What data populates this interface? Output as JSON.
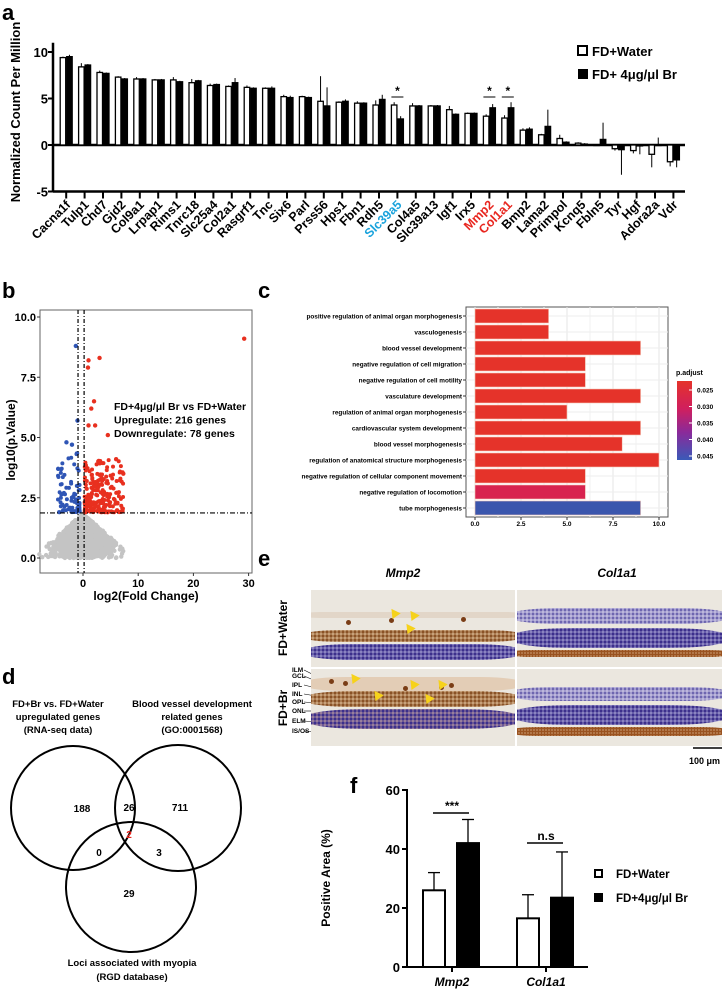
{
  "panel_labels": {
    "a": "a",
    "b": "b",
    "c": "c",
    "d": "d",
    "e": "e",
    "f": "f"
  },
  "chart_data": [
    {
      "id": "a",
      "type": "bar",
      "title": "",
      "xlabel": "",
      "ylabel": "Normalized Count Per Million",
      "ylim": [
        -5,
        10
      ],
      "yticks": [
        "-5",
        "0",
        "5",
        "10"
      ],
      "ytick_values": [
        -5,
        0,
        5,
        10
      ],
      "legend_position": "top-right",
      "categories": [
        "Cacna1f",
        "Tulp1",
        "Chd7",
        "Gjd2",
        "Col9a1",
        "Lrpap1",
        "Rims1",
        "Tnrc18",
        "Slc25a4",
        "Col2a1",
        "Rasgrf1",
        "Tnc",
        "Six6",
        "Parl",
        "Prss56",
        "Hps1",
        "Fbn1",
        "Rdh5",
        "Slc39a5",
        "Col4a5",
        "Slc39a13",
        "Igf1",
        "Irx5",
        "Mmp2",
        "Col1a1",
        "Bmp2",
        "Lama2",
        "Primpol",
        "Kcnq5",
        "Fbln5",
        "Tyr",
        "Hgf",
        "Adora2a",
        "Vdr"
      ],
      "category_colors": {
        "Slc39a5": "#1ba3dc",
        "Mmp2": "#e8261f",
        "Col1a1": "#e8261f"
      },
      "series": [
        {
          "name": "FD+Water",
          "fill": "#ffffff",
          "values": [
            9.4,
            8.4,
            7.8,
            7.3,
            7.1,
            7.0,
            7.0,
            6.7,
            6.4,
            6.3,
            6.2,
            6.1,
            5.2,
            5.2,
            4.7,
            4.6,
            4.5,
            4.3,
            4.3,
            4.2,
            4.2,
            3.8,
            3.4,
            3.1,
            2.9,
            1.6,
            1.1,
            0.7,
            0.2,
            0.0,
            -0.4,
            -0.6,
            -1.0,
            -1.8
          ],
          "errors": [
            0.1,
            0.4,
            0.2,
            0.1,
            0.2,
            0.1,
            0.3,
            0.4,
            0.2,
            0.1,
            0.2,
            0.1,
            0.2,
            0.1,
            2.7,
            0.1,
            0.2,
            0.5,
            0.3,
            0.3,
            0.1,
            0.4,
            0.1,
            0.2,
            0.3,
            0.2,
            0.1,
            0.4,
            0.1,
            0.0,
            0.2,
            0.3,
            1.4,
            0.5
          ]
        },
        {
          "name": "FD+ 4μg/μl Br",
          "fill": "#000000",
          "values": [
            9.5,
            8.6,
            7.7,
            7.1,
            7.1,
            7.0,
            6.8,
            6.9,
            6.5,
            6.7,
            6.1,
            6.1,
            5.1,
            5.1,
            4.2,
            4.7,
            4.5,
            4.9,
            2.8,
            4.2,
            4.2,
            3.3,
            3.4,
            4.0,
            4.0,
            1.7,
            2.0,
            0.3,
            0.1,
            0.6,
            -0.5,
            -0.1,
            0.0,
            -1.6
          ],
          "errors": [
            0.2,
            0.1,
            0.1,
            0.1,
            0.1,
            0.1,
            0.1,
            0.1,
            0.1,
            0.5,
            0.1,
            0.2,
            0.2,
            0.1,
            2.0,
            0.2,
            0.1,
            0.5,
            0.3,
            0.1,
            0.1,
            0.1,
            0.1,
            0.4,
            0.6,
            0.2,
            1.8,
            0.1,
            0.1,
            1.8,
            2.7,
            0.9,
            0.8,
            0.8
          ]
        }
      ],
      "significance": [
        {
          "category": "Slc39a5",
          "label": "*"
        },
        {
          "category": "Mmp2",
          "label": "*"
        },
        {
          "category": "Col1a1",
          "label": "*"
        }
      ]
    },
    {
      "id": "b",
      "type": "scatter",
      "title": "",
      "xlabel": "log2(Fold Change)",
      "ylabel": "log10(p.Value)",
      "xlim": [
        -7.7,
        30.6
      ],
      "ylim": [
        -0.6,
        10.3
      ],
      "xticks": [
        "0",
        "10",
        "20",
        "30"
      ],
      "xtick_values": [
        0,
        10,
        20,
        30
      ],
      "yticks": [
        "0.0",
        "2.5",
        "5.0",
        "7.5",
        "10.0"
      ],
      "ytick_values": [
        0,
        2.5,
        5,
        7.5,
        10
      ],
      "thresholds": {
        "log2fc": [
          -0.9,
          0.2
        ],
        "log10p": 1.87
      },
      "annotation": [
        "FD+4μg/μl Br vs FD+Water",
        "Upregulate: 216 genes",
        "Downregulate: 78 genes"
      ],
      "counts": {
        "up": 216,
        "down": 78
      },
      "colors": {
        "up": "#e8301f",
        "down": "#2f55b5",
        "ns": "#c4c4c4"
      },
      "highlight_points": [
        {
          "x": 29.2,
          "y": 9.1,
          "group": "up"
        },
        {
          "x": 3.0,
          "y": 8.3,
          "group": "up"
        },
        {
          "x": 1.0,
          "y": 8.2,
          "group": "up"
        },
        {
          "x": 0.9,
          "y": 7.9,
          "group": "up"
        },
        {
          "x": 2.0,
          "y": 6.5,
          "group": "up"
        },
        {
          "x": 1.5,
          "y": 6.2,
          "group": "up"
        },
        {
          "x": 1.0,
          "y": 5.5,
          "group": "up"
        },
        {
          "x": 2.2,
          "y": 5.5,
          "group": "up"
        },
        {
          "x": 4.5,
          "y": 5.1,
          "group": "up"
        },
        {
          "x": 6.0,
          "y": 4.1,
          "group": "up"
        },
        {
          "x": 7.3,
          "y": 3.5,
          "group": "up"
        },
        {
          "x": -1.3,
          "y": 8.8,
          "group": "down"
        },
        {
          "x": -1.0,
          "y": 5.7,
          "group": "down"
        },
        {
          "x": -3.0,
          "y": 4.8,
          "group": "down"
        },
        {
          "x": -2.0,
          "y": 4.7,
          "group": "down"
        },
        {
          "x": -4.5,
          "y": 3.7,
          "group": "down"
        }
      ]
    },
    {
      "id": "c",
      "type": "bar",
      "orientation": "horizontal",
      "title": "",
      "xlim": [
        0,
        10.5
      ],
      "xticks": [
        "0.0",
        "2.5",
        "5.0",
        "7.5",
        "10.0"
      ],
      "xtick_values": [
        0,
        2.5,
        5,
        7.5,
        10
      ],
      "categories": [
        "positive regulation of animal organ morphogenesis",
        "vasculogenesis",
        "blood vessel development",
        "negative regulation of cell migration",
        "negative regulation of cell motility",
        "vasculature development",
        "regulation of animal organ morphogenesis",
        "cardiovascular system development",
        "blood vessel morphogenesis",
        "regulation of anatomical structure morphogenesis",
        "negative regulation of cellular component movement",
        "negative regulation of locomotion",
        "tube morphogenesis"
      ],
      "values": [
        4,
        4,
        9,
        6,
        6,
        9,
        5,
        9,
        8,
        10,
        6,
        6,
        9
      ],
      "p_adjust": [
        0.022,
        0.022,
        0.022,
        0.022,
        0.022,
        0.022,
        0.022,
        0.022,
        0.022,
        0.022,
        0.023,
        0.028,
        0.046
      ],
      "colors": [
        "#e5332a",
        "#e5332a",
        "#e5332a",
        "#e5332a",
        "#e5332a",
        "#e5332a",
        "#e5332a",
        "#e5332a",
        "#e5332a",
        "#e5332a",
        "#e5332a",
        "#d8234f",
        "#3b56ad"
      ],
      "legend": {
        "title": "p.adjust",
        "ticks": [
          "0.025",
          "0.030",
          "0.035",
          "0.040",
          "0.045"
        ],
        "position": "right"
      }
    },
    {
      "id": "f",
      "type": "bar",
      "title": "",
      "ylabel": "Positive Area (%)",
      "ylim": [
        0,
        60
      ],
      "yticks": [
        "0",
        "20",
        "40",
        "60"
      ],
      "ytick_values": [
        0,
        20,
        40,
        60
      ],
      "categories": [
        "Mmp2",
        "Col1a1"
      ],
      "legend_position": "right",
      "series": [
        {
          "name": "FD+Water",
          "fill": "#ffffff",
          "values": [
            26,
            16.5
          ],
          "errors": [
            6,
            8
          ]
        },
        {
          "name": "FD+4μg/μl Br",
          "fill": "#000000",
          "values": [
            42,
            23.5
          ],
          "errors": [
            8,
            15.5
          ]
        }
      ],
      "significance": [
        {
          "category": "Mmp2",
          "label": "***"
        },
        {
          "category": "Col1a1",
          "label": "n.s"
        }
      ]
    }
  ],
  "venn": {
    "set_labels": [
      [
        "FD+Br vs. FD+Water",
        "upregulated genes",
        "(RNA-seq data)"
      ],
      [
        "Blood vessel development",
        "related genes",
        "(GO:0001568)"
      ],
      [
        "Loci associated with myopia",
        "(RGD database)"
      ]
    ],
    "regions": {
      "only_a": "188",
      "a_b": "26",
      "only_b": "711",
      "a_b_c": "2",
      "a_c": "0",
      "b_c": "3",
      "only_c": "29"
    },
    "highlight_color": "#e8261f"
  },
  "ihc": {
    "columns": [
      "Mmp2",
      "Col1a1"
    ],
    "rows": [
      "FD+Water",
      "FD+Br"
    ],
    "layers": [
      "ILM",
      "GCL",
      "IPL",
      "INL",
      "OPL",
      "ONL",
      "ELM",
      "IS/OS"
    ],
    "scale_bar": "100 μm"
  }
}
